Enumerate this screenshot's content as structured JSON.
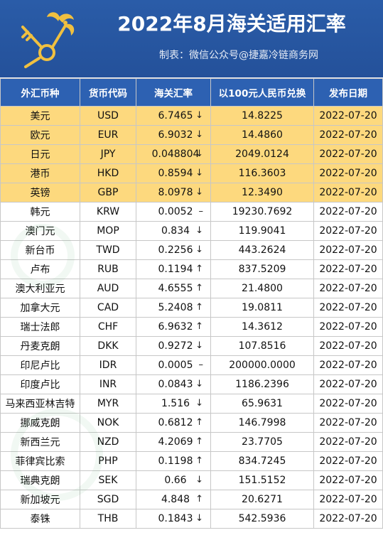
{
  "header": {
    "title": "2022年8月海关适用汇率",
    "subtitle": "制表：微信公众号@捷嘉冷链商务网"
  },
  "columns": [
    "外汇币种",
    "货币代码",
    "海关汇率",
    "以100元人民币兑换",
    "发布日期"
  ],
  "rows": [
    {
      "name": "美元",
      "code": "USD",
      "rate": "6.7465",
      "trend": "↓",
      "exchange": "14.8225",
      "date": "2022-07-20"
    },
    {
      "name": "欧元",
      "code": "EUR",
      "rate": "6.9032",
      "trend": "↓",
      "exchange": "14.4860",
      "date": "2022-07-20"
    },
    {
      "name": "日元",
      "code": "JPY",
      "rate": "0.048804",
      "trend": "↓",
      "exchange": "2049.0124",
      "date": "2022-07-20"
    },
    {
      "name": "港币",
      "code": "HKD",
      "rate": "0.8594",
      "trend": "↓",
      "exchange": "116.3603",
      "date": "2022-07-20"
    },
    {
      "name": "英镑",
      "code": "GBP",
      "rate": "8.0978",
      "trend": "↓",
      "exchange": "12.3490",
      "date": "2022-07-20"
    },
    {
      "name": "韩元",
      "code": "KRW",
      "rate": "0.0052",
      "trend": "–",
      "exchange": "19230.7692",
      "date": "2022-07-20"
    },
    {
      "name": "澳门元",
      "code": "MOP",
      "rate": "0.834",
      "trend": "↓",
      "exchange": "119.9041",
      "date": "2022-07-20"
    },
    {
      "name": "新台币",
      "code": "TWD",
      "rate": "0.2256",
      "trend": "↓",
      "exchange": "443.2624",
      "date": "2022-07-20"
    },
    {
      "name": "卢布",
      "code": "RUB",
      "rate": "0.1194",
      "trend": "↑",
      "exchange": "837.5209",
      "date": "2022-07-20"
    },
    {
      "name": "澳大利亚元",
      "code": "AUD",
      "rate": "4.6555",
      "trend": "↑",
      "exchange": "21.4800",
      "date": "2022-07-20"
    },
    {
      "name": "加拿大元",
      "code": "CAD",
      "rate": "5.2408",
      "trend": "↑",
      "exchange": "19.0811",
      "date": "2022-07-20"
    },
    {
      "name": "瑞士法郎",
      "code": "CHF",
      "rate": "6.9632",
      "trend": "↑",
      "exchange": "14.3612",
      "date": "2022-07-20"
    },
    {
      "name": "丹麦克朗",
      "code": "DKK",
      "rate": "0.9272",
      "trend": "↓",
      "exchange": "107.8516",
      "date": "2022-07-20"
    },
    {
      "name": "印尼卢比",
      "code": "IDR",
      "rate": "0.0005",
      "trend": "–",
      "exchange": "200000.0000",
      "date": "2022-07-20"
    },
    {
      "name": "印度卢比",
      "code": "INR",
      "rate": "0.0843",
      "trend": "↓",
      "exchange": "1186.2396",
      "date": "2022-07-20"
    },
    {
      "name": "马来西亚林吉特",
      "code": "MYR",
      "rate": "1.516",
      "trend": "↓",
      "exchange": "65.9631",
      "date": "2022-07-20"
    },
    {
      "name": "挪威克朗",
      "code": "NOK",
      "rate": "0.6812",
      "trend": "↑",
      "exchange": "146.7998",
      "date": "2022-07-20"
    },
    {
      "name": "新西兰元",
      "code": "NZD",
      "rate": "4.2069",
      "trend": "↑",
      "exchange": "23.7705",
      "date": "2022-07-20"
    },
    {
      "name": "菲律宾比索",
      "code": "PHP",
      "rate": "0.1198",
      "trend": "↑",
      "exchange": "834.7245",
      "date": "2022-07-20"
    },
    {
      "name": "瑞典克朗",
      "code": "SEK",
      "rate": "0.66",
      "trend": "↓",
      "exchange": "151.5152",
      "date": "2022-07-20"
    },
    {
      "name": "新加坡元",
      "code": "SGD",
      "rate": "4.848",
      "trend": "↑",
      "exchange": "20.6271",
      "date": "2022-07-20"
    },
    {
      "name": "泰铢",
      "code": "THB",
      "rate": "0.1843",
      "trend": "↓",
      "exchange": "542.5936",
      "date": "2022-07-20"
    }
  ],
  "highlight_rows": 5,
  "colors": {
    "header_bg": "#2a5ca8",
    "table_header_bg": "#2d61b2",
    "highlight_row_bg": "#fdd97e",
    "logo_gold": "#f0c040"
  },
  "icons": {
    "logo": "customs-emblem-icon",
    "trend_up": "arrow-up-icon",
    "trend_down": "arrow-down-icon",
    "trend_flat": "dash-icon"
  }
}
